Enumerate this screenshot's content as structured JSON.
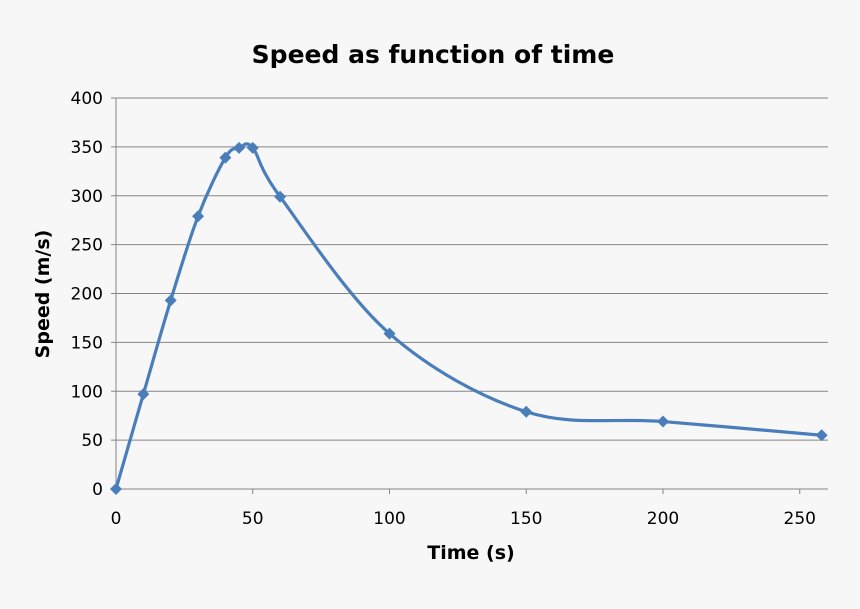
{
  "chart_data": {
    "type": "line",
    "title": "Speed as function of time",
    "xlabel": "Time (s)",
    "ylabel": "Speed (m/s)",
    "xlim": [
      0,
      260
    ],
    "ylim": [
      0,
      400
    ],
    "xticks": [
      0,
      50,
      100,
      150,
      200,
      250
    ],
    "yticks": [
      0,
      50,
      100,
      150,
      200,
      250,
      300,
      350,
      400
    ],
    "grid": "horizontal",
    "smoothed": true,
    "marker": "diamond",
    "color": "#4a7ebb",
    "series": [
      {
        "x": [
          0,
          10,
          20,
          30,
          40,
          45,
          50,
          60,
          100,
          150,
          200,
          258
        ],
        "y": [
          0,
          97,
          193,
          279,
          339,
          349,
          349,
          299,
          159,
          79,
          69,
          55
        ]
      }
    ]
  }
}
